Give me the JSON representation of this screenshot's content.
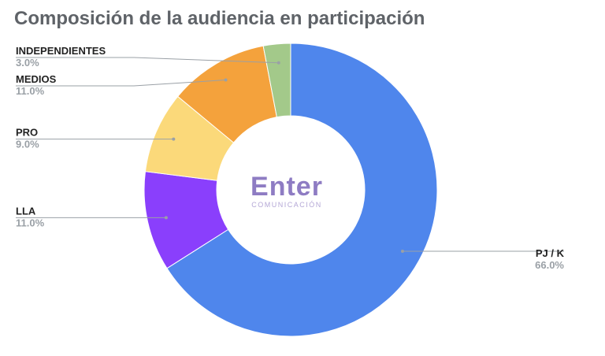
{
  "chart_data": {
    "type": "pie",
    "title": "Composición de la audiencia en participación",
    "donut": true,
    "center_logo": {
      "text": "Enter",
      "subtext": "COMUNICACIÓN"
    },
    "slices": [
      {
        "name": "PJ / K",
        "value": 66.0,
        "label": "66.0%",
        "color": "#4f86ec"
      },
      {
        "name": "LLA",
        "value": 11.0,
        "label": "11.0%",
        "color": "#8a3ffc"
      },
      {
        "name": "PRO",
        "value": 9.0,
        "label": "9.0%",
        "color": "#fbd97a"
      },
      {
        "name": "MEDIOS",
        "value": 11.0,
        "label": "11.0%",
        "color": "#f4a23c"
      },
      {
        "name": "INDEPENDIENTES",
        "value": 3.0,
        "label": "3.0%",
        "color": "#a3c98a"
      }
    ]
  }
}
